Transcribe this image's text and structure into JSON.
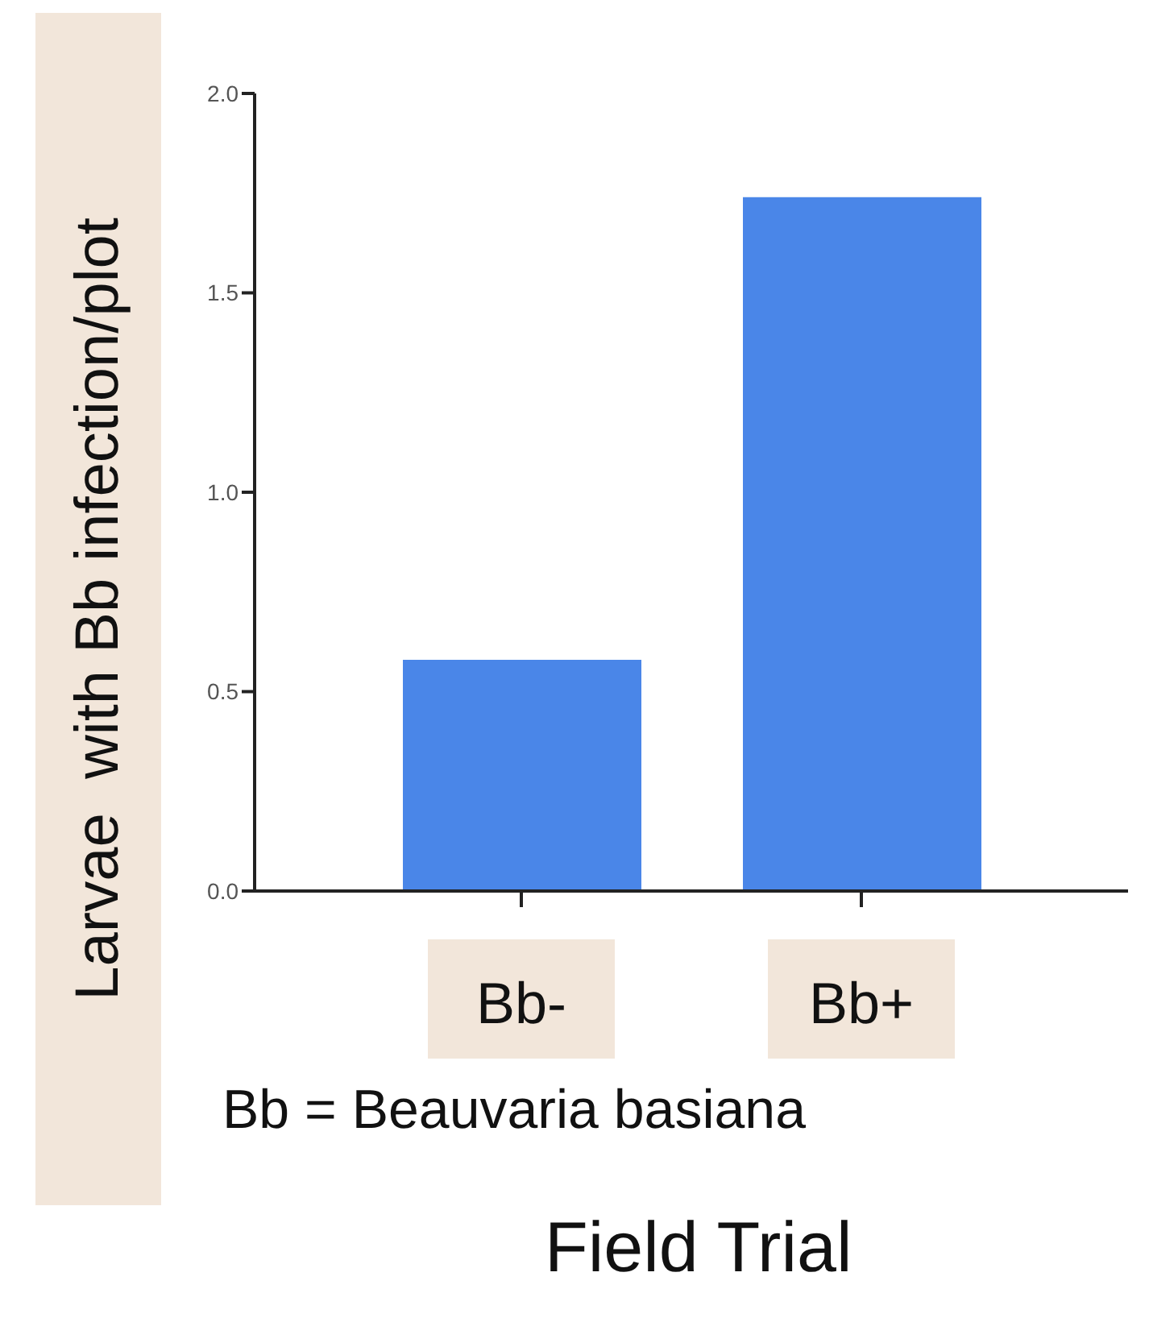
{
  "chart_data": {
    "type": "bar",
    "xlabel": "Field Trial",
    "ylabel": "Larvae  with Bb infection/plot",
    "categories": [
      "Bb-",
      "Bb+"
    ],
    "values": [
      0.58,
      1.74
    ],
    "color": "#4a86e8",
    "ylim": [
      0,
      2
    ],
    "yticks": [
      {
        "value": 0,
        "label": "0.0"
      },
      {
        "value": 0.5,
        "label": "0.5"
      },
      {
        "value": 1,
        "label": "1.0"
      },
      {
        "value": 1.5,
        "label": "1.5"
      },
      {
        "value": 2,
        "label": "2.0"
      }
    ],
    "grid": false,
    "legend": false,
    "annotations": [
      "Bb = Beauvaria basiana"
    ]
  }
}
